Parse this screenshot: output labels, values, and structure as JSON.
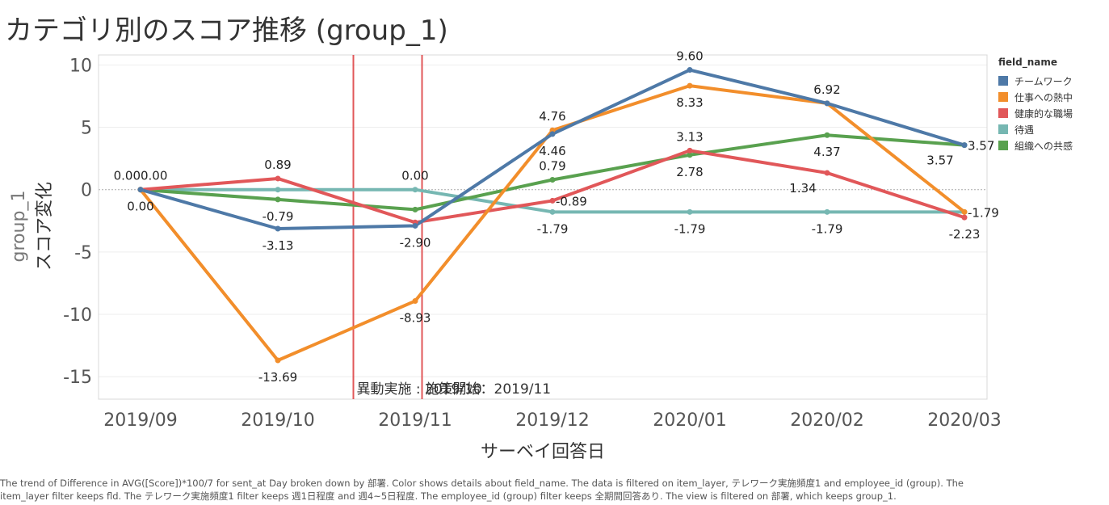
{
  "title": "カテゴリ別のスコア推移 (group_1)",
  "caption": "The trend of Difference in AVG([Score])*100/7 for sent_at Day broken down by 部署.  Color shows details about field_name. The data is filtered on item_layer, テレワーク実施頻度1 and employee_id (group). The item_layer filter keeps fld. The テレワーク実施頻度1 filter keeps 週1日程度 and 週4~5日程度. The employee_id (group) filter keeps 全期間回答あり. The view is filtered on 部署, which keeps group_1.",
  "legend_title": "field_name",
  "chart_data": {
    "type": "line",
    "title": "カテゴリ別のスコア推移 (group_1)",
    "xlabel": "サーベイ回答日",
    "ylabel_line1": "group_1",
    "ylabel_line2": "スコア変化",
    "ylim": [
      -16.8,
      10.8
    ],
    "yticks": [
      10,
      5,
      0,
      -5,
      -10,
      -15
    ],
    "ytick_labels": [
      "10",
      "5",
      "0",
      "-5",
      "-10",
      "-15"
    ],
    "categories": [
      "2019/09",
      "2019/10",
      "2019/11",
      "2019/12",
      "2020/01",
      "2020/02",
      "2020/03"
    ],
    "grid": true,
    "legend_position": "right",
    "series": [
      {
        "name": "チームワーク",
        "color": "#4e79a7",
        "values": [
          0.0,
          -3.13,
          -2.9,
          4.46,
          9.6,
          6.92,
          3.57
        ]
      },
      {
        "name": "仕事への熱中",
        "color": "#f28e2b",
        "values": [
          0.0,
          -13.69,
          -8.93,
          4.76,
          8.33,
          6.92,
          -1.79
        ]
      },
      {
        "name": "健康的な職場",
        "color": "#e15759",
        "values": [
          0.0,
          0.89,
          -2.63,
          -0.89,
          3.13,
          1.34,
          -2.23
        ]
      },
      {
        "name": "待遇",
        "color": "#76b7b2",
        "values": [
          0.0,
          0.0,
          0.0,
          -1.79,
          -1.79,
          -1.79,
          -1.79
        ]
      },
      {
        "name": "組織への共感",
        "color": "#59a14f",
        "values": [
          0.0,
          -0.79,
          -1.6,
          0.79,
          2.78,
          4.37,
          3.57
        ]
      }
    ],
    "data_labels": [
      {
        "text": "0.000.00",
        "series": 0,
        "point": 0,
        "pos": "above"
      },
      {
        "text": "0.00",
        "series": 0,
        "point": 0,
        "pos": "below"
      },
      {
        "text": "0.89",
        "series": 2,
        "point": 1,
        "pos": "above"
      },
      {
        "text": "-0.79",
        "series": 4,
        "point": 1,
        "pos": "below"
      },
      {
        "text": "-3.13",
        "series": 0,
        "point": 1,
        "pos": "below"
      },
      {
        "text": "-13.69",
        "series": 1,
        "point": 1,
        "pos": "below"
      },
      {
        "text": "0.00",
        "series": 3,
        "point": 2,
        "pos": "above"
      },
      {
        "text": "-2.90",
        "series": 0,
        "point": 2,
        "pos": "below"
      },
      {
        "text": "-8.93",
        "series": 1,
        "point": 2,
        "pos": "below"
      },
      {
        "text": "4.76",
        "series": 1,
        "point": 3,
        "pos": "above"
      },
      {
        "text": "4.46",
        "series": 0,
        "point": 3,
        "pos": "below"
      },
      {
        "text": "0.79",
        "series": 4,
        "point": 3,
        "pos": "above"
      },
      {
        "text": "-0.89",
        "series": 2,
        "point": 3,
        "pos": "right"
      },
      {
        "text": "-1.79",
        "series": 3,
        "point": 3,
        "pos": "below"
      },
      {
        "text": "9.60",
        "series": 0,
        "point": 4,
        "pos": "above"
      },
      {
        "text": "8.33",
        "series": 1,
        "point": 4,
        "pos": "below"
      },
      {
        "text": "3.13",
        "series": 2,
        "point": 4,
        "pos": "above"
      },
      {
        "text": "2.78",
        "series": 4,
        "point": 4,
        "pos": "below"
      },
      {
        "text": "-1.79",
        "series": 3,
        "point": 4,
        "pos": "below"
      },
      {
        "text": "6.92",
        "series": 0,
        "point": 5,
        "pos": "above"
      },
      {
        "text": "4.37",
        "series": 4,
        "point": 5,
        "pos": "below"
      },
      {
        "text": "1.34",
        "series": 2,
        "point": 5,
        "pos": "belowleft"
      },
      {
        "text": "-1.79",
        "series": 3,
        "point": 5,
        "pos": "below"
      },
      {
        "text": "3.57",
        "series": 0,
        "point": 6,
        "pos": "right"
      },
      {
        "text": "3.57",
        "series": 4,
        "point": 6,
        "pos": "belowleft"
      },
      {
        "text": "-1.79",
        "series": 1,
        "point": 6,
        "pos": "right"
      },
      {
        "text": "-2.23",
        "series": 2,
        "point": 6,
        "pos": "below"
      }
    ],
    "reference_lines": [
      {
        "label": "異動実施 : 2019/10",
        "at": 1.55,
        "color": "#e15759"
      },
      {
        "label": "施策開始：2019/11",
        "at": 2.05,
        "color": "#e15759"
      }
    ]
  }
}
